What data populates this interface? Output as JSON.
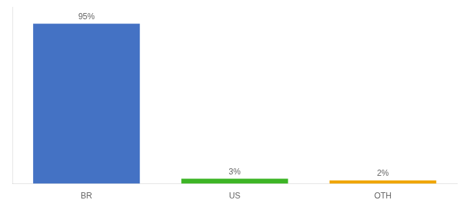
{
  "chart_data": {
    "type": "bar",
    "categories": [
      "BR",
      "US",
      "OTH"
    ],
    "values": [
      95,
      3,
      2
    ],
    "value_labels": [
      "95%",
      "3%",
      "2%"
    ],
    "colors": [
      "#4472c4",
      "#3db526",
      "#f0a500"
    ],
    "ylim": [
      0,
      105
    ],
    "data_labels": true,
    "tick_labels": "x",
    "grid": false
  }
}
